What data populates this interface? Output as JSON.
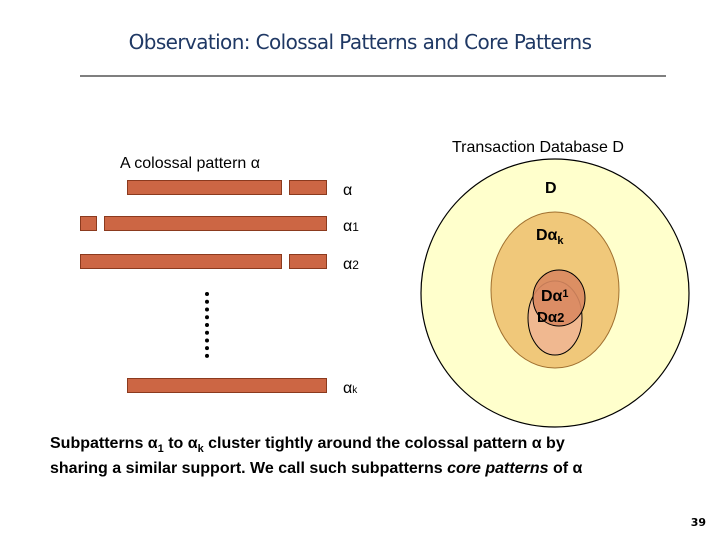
{
  "slide": {
    "title": "Observation: Colossal Patterns and Core Patterns",
    "page_number": "39"
  },
  "left_panel": {
    "heading": "A colossal pattern α",
    "row_labels": {
      "alpha": "α",
      "alpha1_base": "α",
      "alpha1_sub": "1",
      "alpha2_base": "α",
      "alpha2_sub": "2",
      "alphak_base": "α",
      "alphak_sub": "k"
    }
  },
  "venn": {
    "heading": "Transaction Database D",
    "label_D": "D",
    "label_Dak_base": "Dα",
    "label_Dak_sub": "k",
    "label_Da1_base": "Dα",
    "label_Da1_sub": "1",
    "label_Da2_base": "Dα",
    "label_Da2_sub": "2",
    "colors": {
      "outer_fill": "#ffffcc",
      "alphak_fill": "#f0c87a",
      "alpha1_fill": "#d98860",
      "alpha2_fill": "#f0b890",
      "stroke": "#000000"
    }
  },
  "caption": {
    "line1_a": "Subpatterns α",
    "line1_sub1": "1",
    "line1_b": " to α",
    "line1_subk": "k",
    "line1_c": " cluster tightly around the colossal pattern α by",
    "line2_a": "sharing a similar support.  We call such subpatterns ",
    "line2_italic": "core patterns",
    "line2_b": " of α"
  }
}
